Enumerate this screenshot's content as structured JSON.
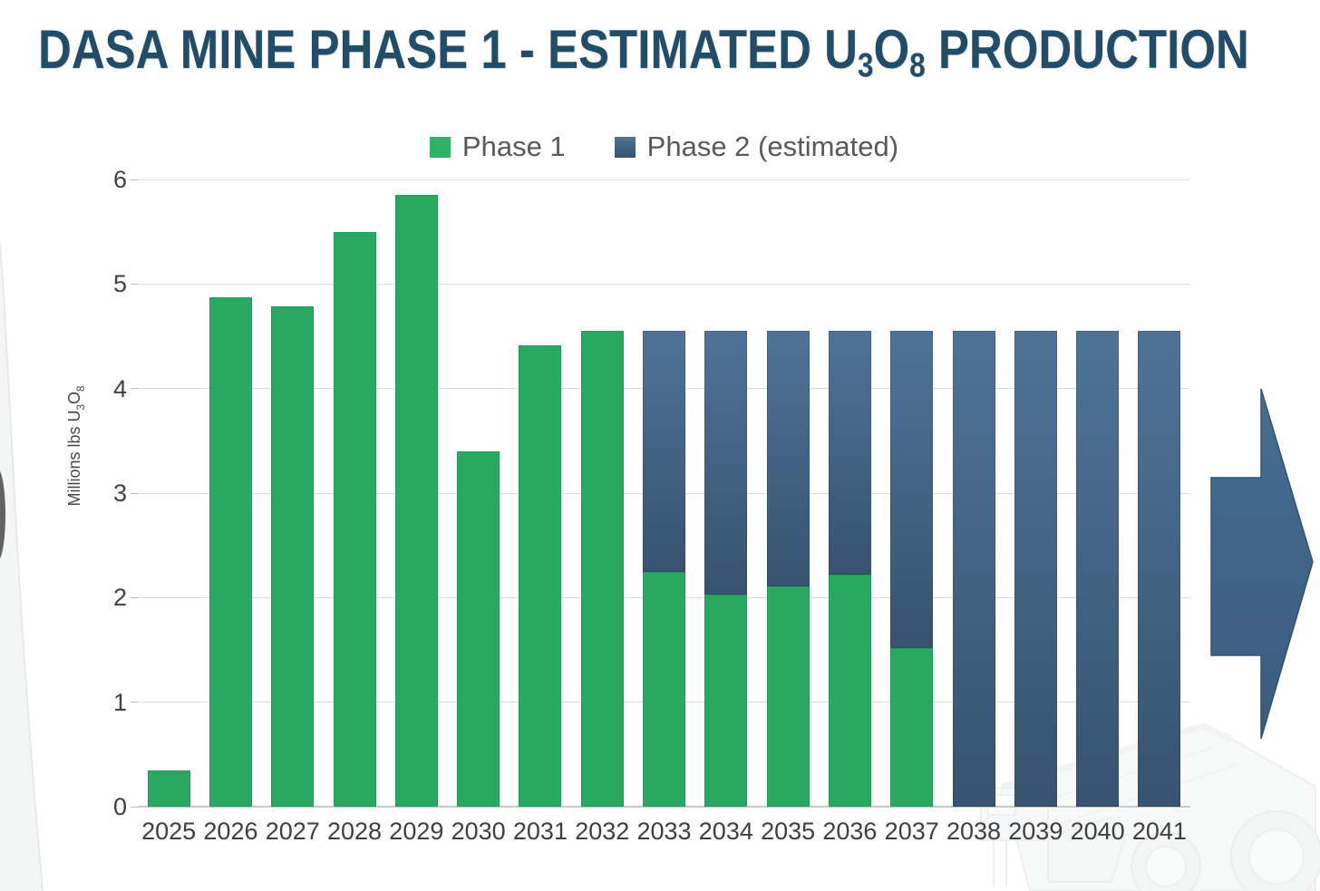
{
  "title": {
    "prefix": "DASA MINE PHASE 1 - ESTIMATED U",
    "sub1": "3",
    "mid": "O",
    "sub2": "8",
    "suffix": " PRODUCTION",
    "color": "#214d68"
  },
  "legend": {
    "items": [
      {
        "label": "Phase 1",
        "color": "#2fb267"
      },
      {
        "label": "Phase 2 (estimated)",
        "color": "#3e6389"
      }
    ]
  },
  "y_axis": {
    "title_prefix": "Millions lbs U",
    "sub1": "3",
    "mid": "O",
    "sub2": "8"
  },
  "chart_data": {
    "type": "bar",
    "stacked": true,
    "title": "DASA MINE PHASE 1 - ESTIMATED U3O8 PRODUCTION",
    "xlabel": "",
    "ylabel": "Millions lbs U3O8",
    "ylim": [
      0,
      6
    ],
    "yticks": [
      0,
      1,
      2,
      3,
      4,
      5,
      6
    ],
    "grid": true,
    "legend_position": "top-center",
    "categories": [
      "2025",
      "2026",
      "2027",
      "2028",
      "2029",
      "2030",
      "2031",
      "2032",
      "2033",
      "2034",
      "2035",
      "2036",
      "2037",
      "2038",
      "2039",
      "2040",
      "2041"
    ],
    "series": [
      {
        "name": "Phase 1",
        "color": "#28a962",
        "values": [
          0.35,
          4.87,
          4.79,
          5.5,
          5.85,
          3.4,
          4.41,
          4.55,
          2.25,
          2.03,
          2.11,
          2.22,
          1.52,
          0,
          0,
          0,
          0
        ]
      },
      {
        "name": "Phase 2 (estimated)",
        "color_top": "#4e7398",
        "color_bottom": "#36536f",
        "values": [
          0,
          0,
          0,
          0,
          0,
          0,
          0,
          0,
          2.3,
          2.52,
          2.44,
          2.33,
          3.03,
          4.55,
          4.55,
          4.55,
          4.55
        ]
      }
    ]
  },
  "decor": {
    "arrow_color_top": "#466d93",
    "arrow_color_bottom": "#3a5b7e",
    "truck_watermark": "haul-truck-watermark",
    "swoosh_color": "#f4f5f5"
  }
}
